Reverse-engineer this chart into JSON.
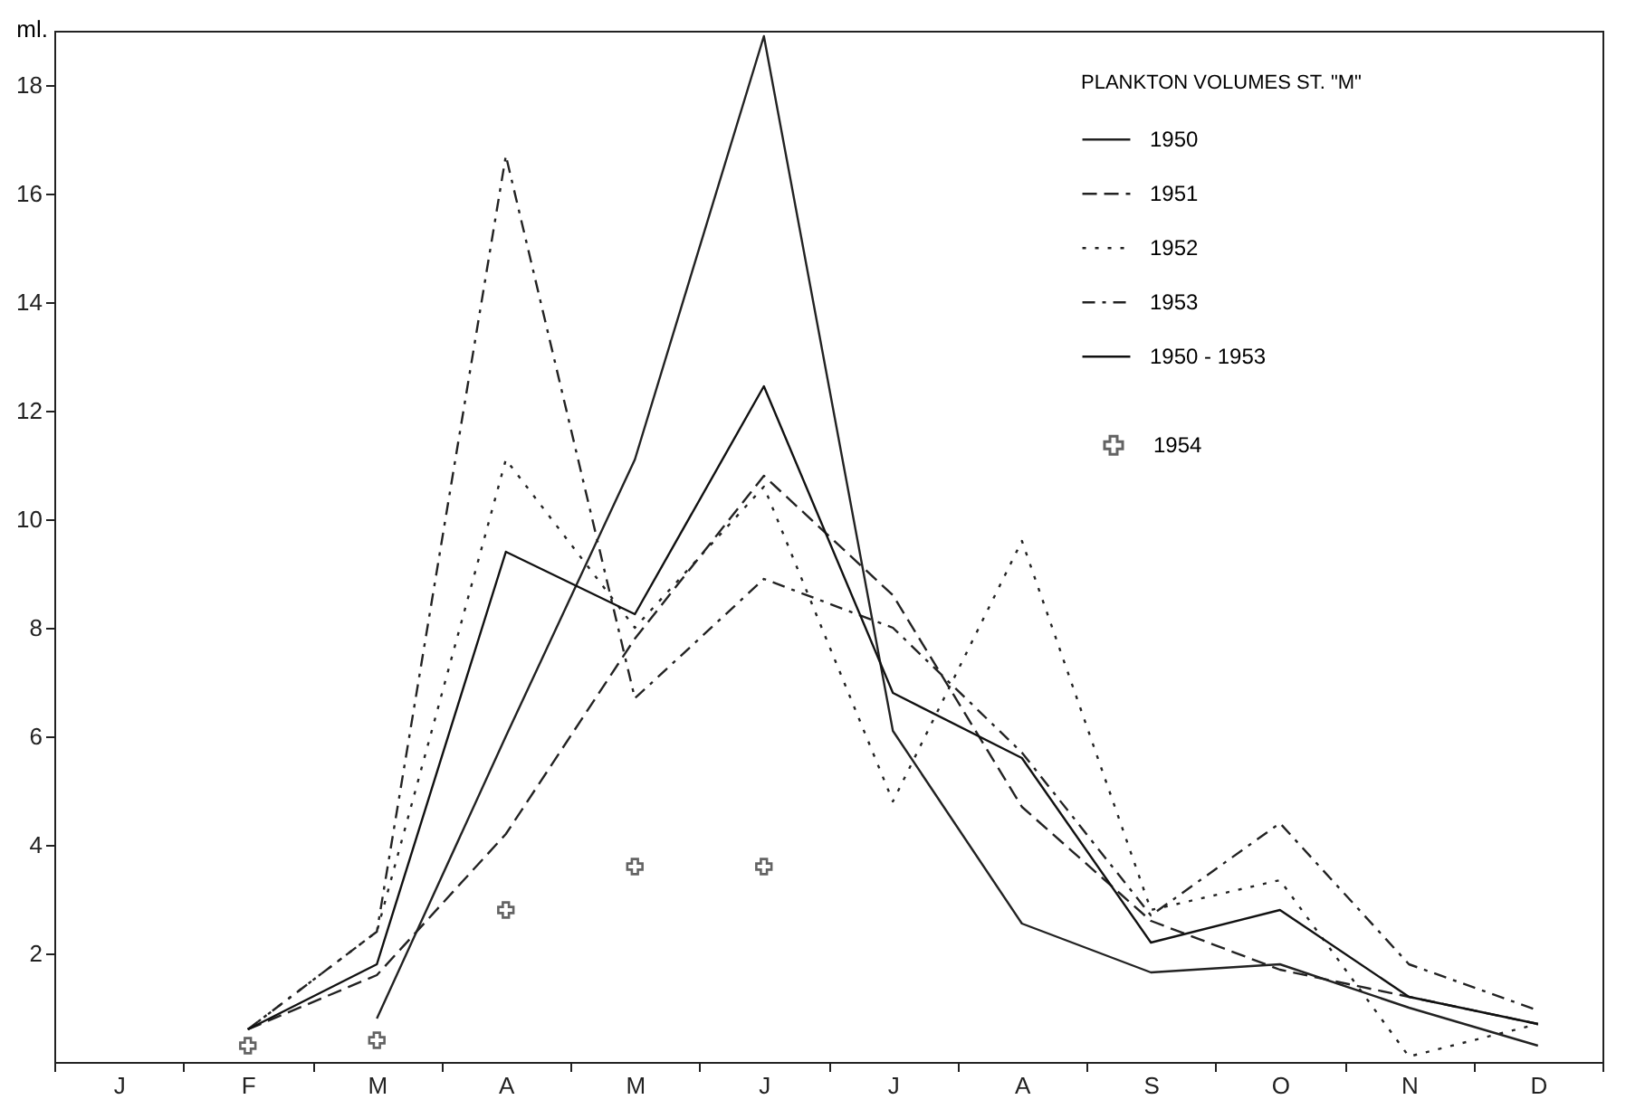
{
  "chart_data": {
    "type": "line",
    "ylabel": "ml.",
    "legend_title": "PLANKTON VOLUMES  ST. \"M\"",
    "categories": [
      "J",
      "F",
      "M",
      "A",
      "M",
      "J",
      "J",
      "A",
      "S",
      "O",
      "N",
      "D"
    ],
    "series": [
      {
        "name": "1950",
        "color": "#222222",
        "line_style": "solid",
        "values": [
          null,
          null,
          0.8,
          6.0,
          11.1,
          18.9,
          6.1,
          2.55,
          1.65,
          1.8,
          1.0,
          0.3
        ]
      },
      {
        "name": "1951",
        "color": "#222222",
        "line_style": "dashed",
        "values": [
          null,
          0.6,
          1.6,
          4.2,
          7.8,
          10.8,
          8.6,
          4.7,
          2.6,
          1.7,
          1.2,
          0.7
        ]
      },
      {
        "name": "1952",
        "color": "#222222",
        "line_style": "dotted",
        "values": [
          null,
          0.6,
          2.4,
          11.1,
          8.0,
          10.6,
          4.8,
          9.6,
          2.8,
          3.35,
          0.1,
          0.7
        ]
      },
      {
        "name": "1953",
        "color": "#222222",
        "line_style": "dashdot",
        "values": [
          null,
          0.6,
          2.4,
          16.7,
          6.7,
          8.9,
          8.0,
          5.7,
          2.7,
          4.4,
          1.8,
          0.95
        ]
      },
      {
        "name": "1950 - 1953",
        "color": "#111111",
        "line_style": "solid",
        "values": [
          null,
          0.6,
          1.8,
          9.4,
          8.25,
          12.45,
          6.8,
          5.6,
          2.2,
          2.8,
          1.2,
          0.7
        ]
      },
      {
        "name": "1954",
        "type": "scatter",
        "marker": "cross",
        "color": "#222222",
        "values": [
          null,
          0.3,
          0.4,
          2.8,
          3.6,
          3.6,
          null,
          null,
          null,
          null,
          null,
          null
        ]
      }
    ],
    "ylim": [
      0,
      19
    ],
    "yticks": [
      2,
      4,
      6,
      8,
      10,
      12,
      14,
      16,
      18
    ],
    "grid": false,
    "legend": "top right"
  }
}
